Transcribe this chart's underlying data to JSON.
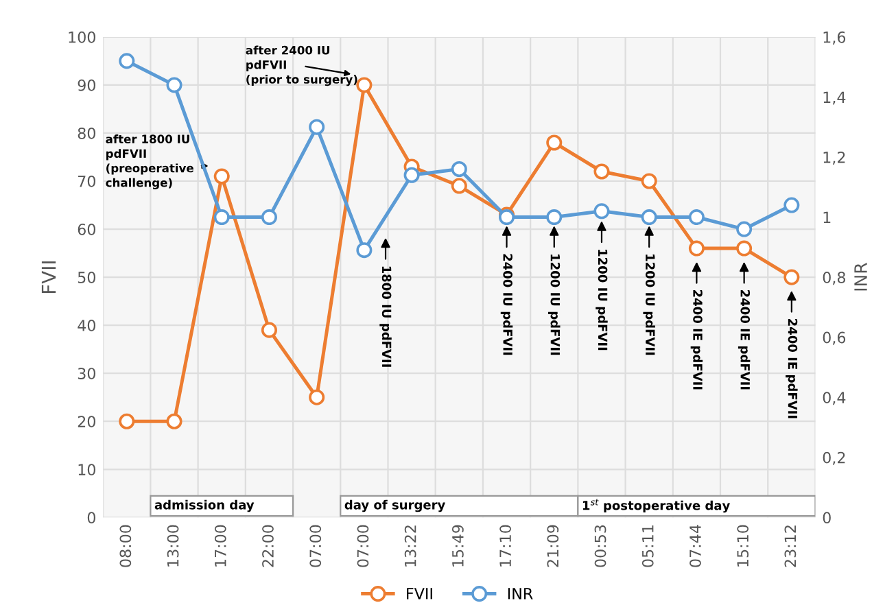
{
  "chart_data": {
    "type": "line",
    "ylabel": "FVII",
    "y2label": "INR",
    "categories": [
      "08:00",
      "13:00",
      "17:00",
      "22:00",
      "07:00",
      "07:00",
      "13:22",
      "15:49",
      "17:10",
      "21:09",
      "00:53",
      "05:11",
      "07:44",
      "15:10",
      "23:12"
    ],
    "series": [
      {
        "name": "FVII",
        "color": "#ed7d31",
        "values": [
          20,
          20,
          71,
          39,
          25,
          90,
          73,
          69,
          63,
          78,
          72,
          70,
          56,
          56,
          50
        ]
      },
      {
        "name": "INR",
        "color": "#5b9bd5",
        "axis": "y2",
        "values": [
          1.52,
          1.44,
          1.0,
          1.0,
          1.3,
          0.89,
          1.14,
          1.16,
          1.0,
          1.0,
          1.02,
          1.0,
          1.0,
          0.96,
          1.04
        ]
      }
    ],
    "ylim": [
      0,
      100
    ],
    "yticks": [
      0,
      10,
      20,
      30,
      40,
      50,
      60,
      70,
      80,
      90,
      100
    ],
    "y2lim": [
      0,
      1.6
    ],
    "y2ticks": [
      0,
      {
        "value": 0.2,
        "label": "0,2"
      },
      {
        "value": 0.4,
        "label": "0,4"
      },
      {
        "value": 0.6,
        "label": "0,6"
      },
      {
        "value": 0.8,
        "label": "0,8"
      },
      1,
      {
        "value": 1.2,
        "label": "1,2"
      },
      {
        "value": 1.4,
        "label": "1,4"
      },
      {
        "value": 1.6,
        "label": "1,6"
      }
    ],
    "annotations": [
      "after 1800 IU\npdFVII\n(preoperative\nchallenge)",
      "after 2400 IU\npdFVII\n(prior to surgery)",
      "1800 IU pdFVII",
      "2400 IU pdFVII",
      "1200 IU pdFVII",
      "1200 IU pdFVII",
      "1200 IU pdFVII",
      "2400 IE pdFVII",
      "2400 IE pdFVII",
      "2400 IE pdFVII",
      "admission day",
      "day of surgery",
      "1$^{st}$ postoperative day"
    ],
    "grid": true,
    "legend": "bottom",
    "marker": "circle",
    "line_style": "solid"
  }
}
